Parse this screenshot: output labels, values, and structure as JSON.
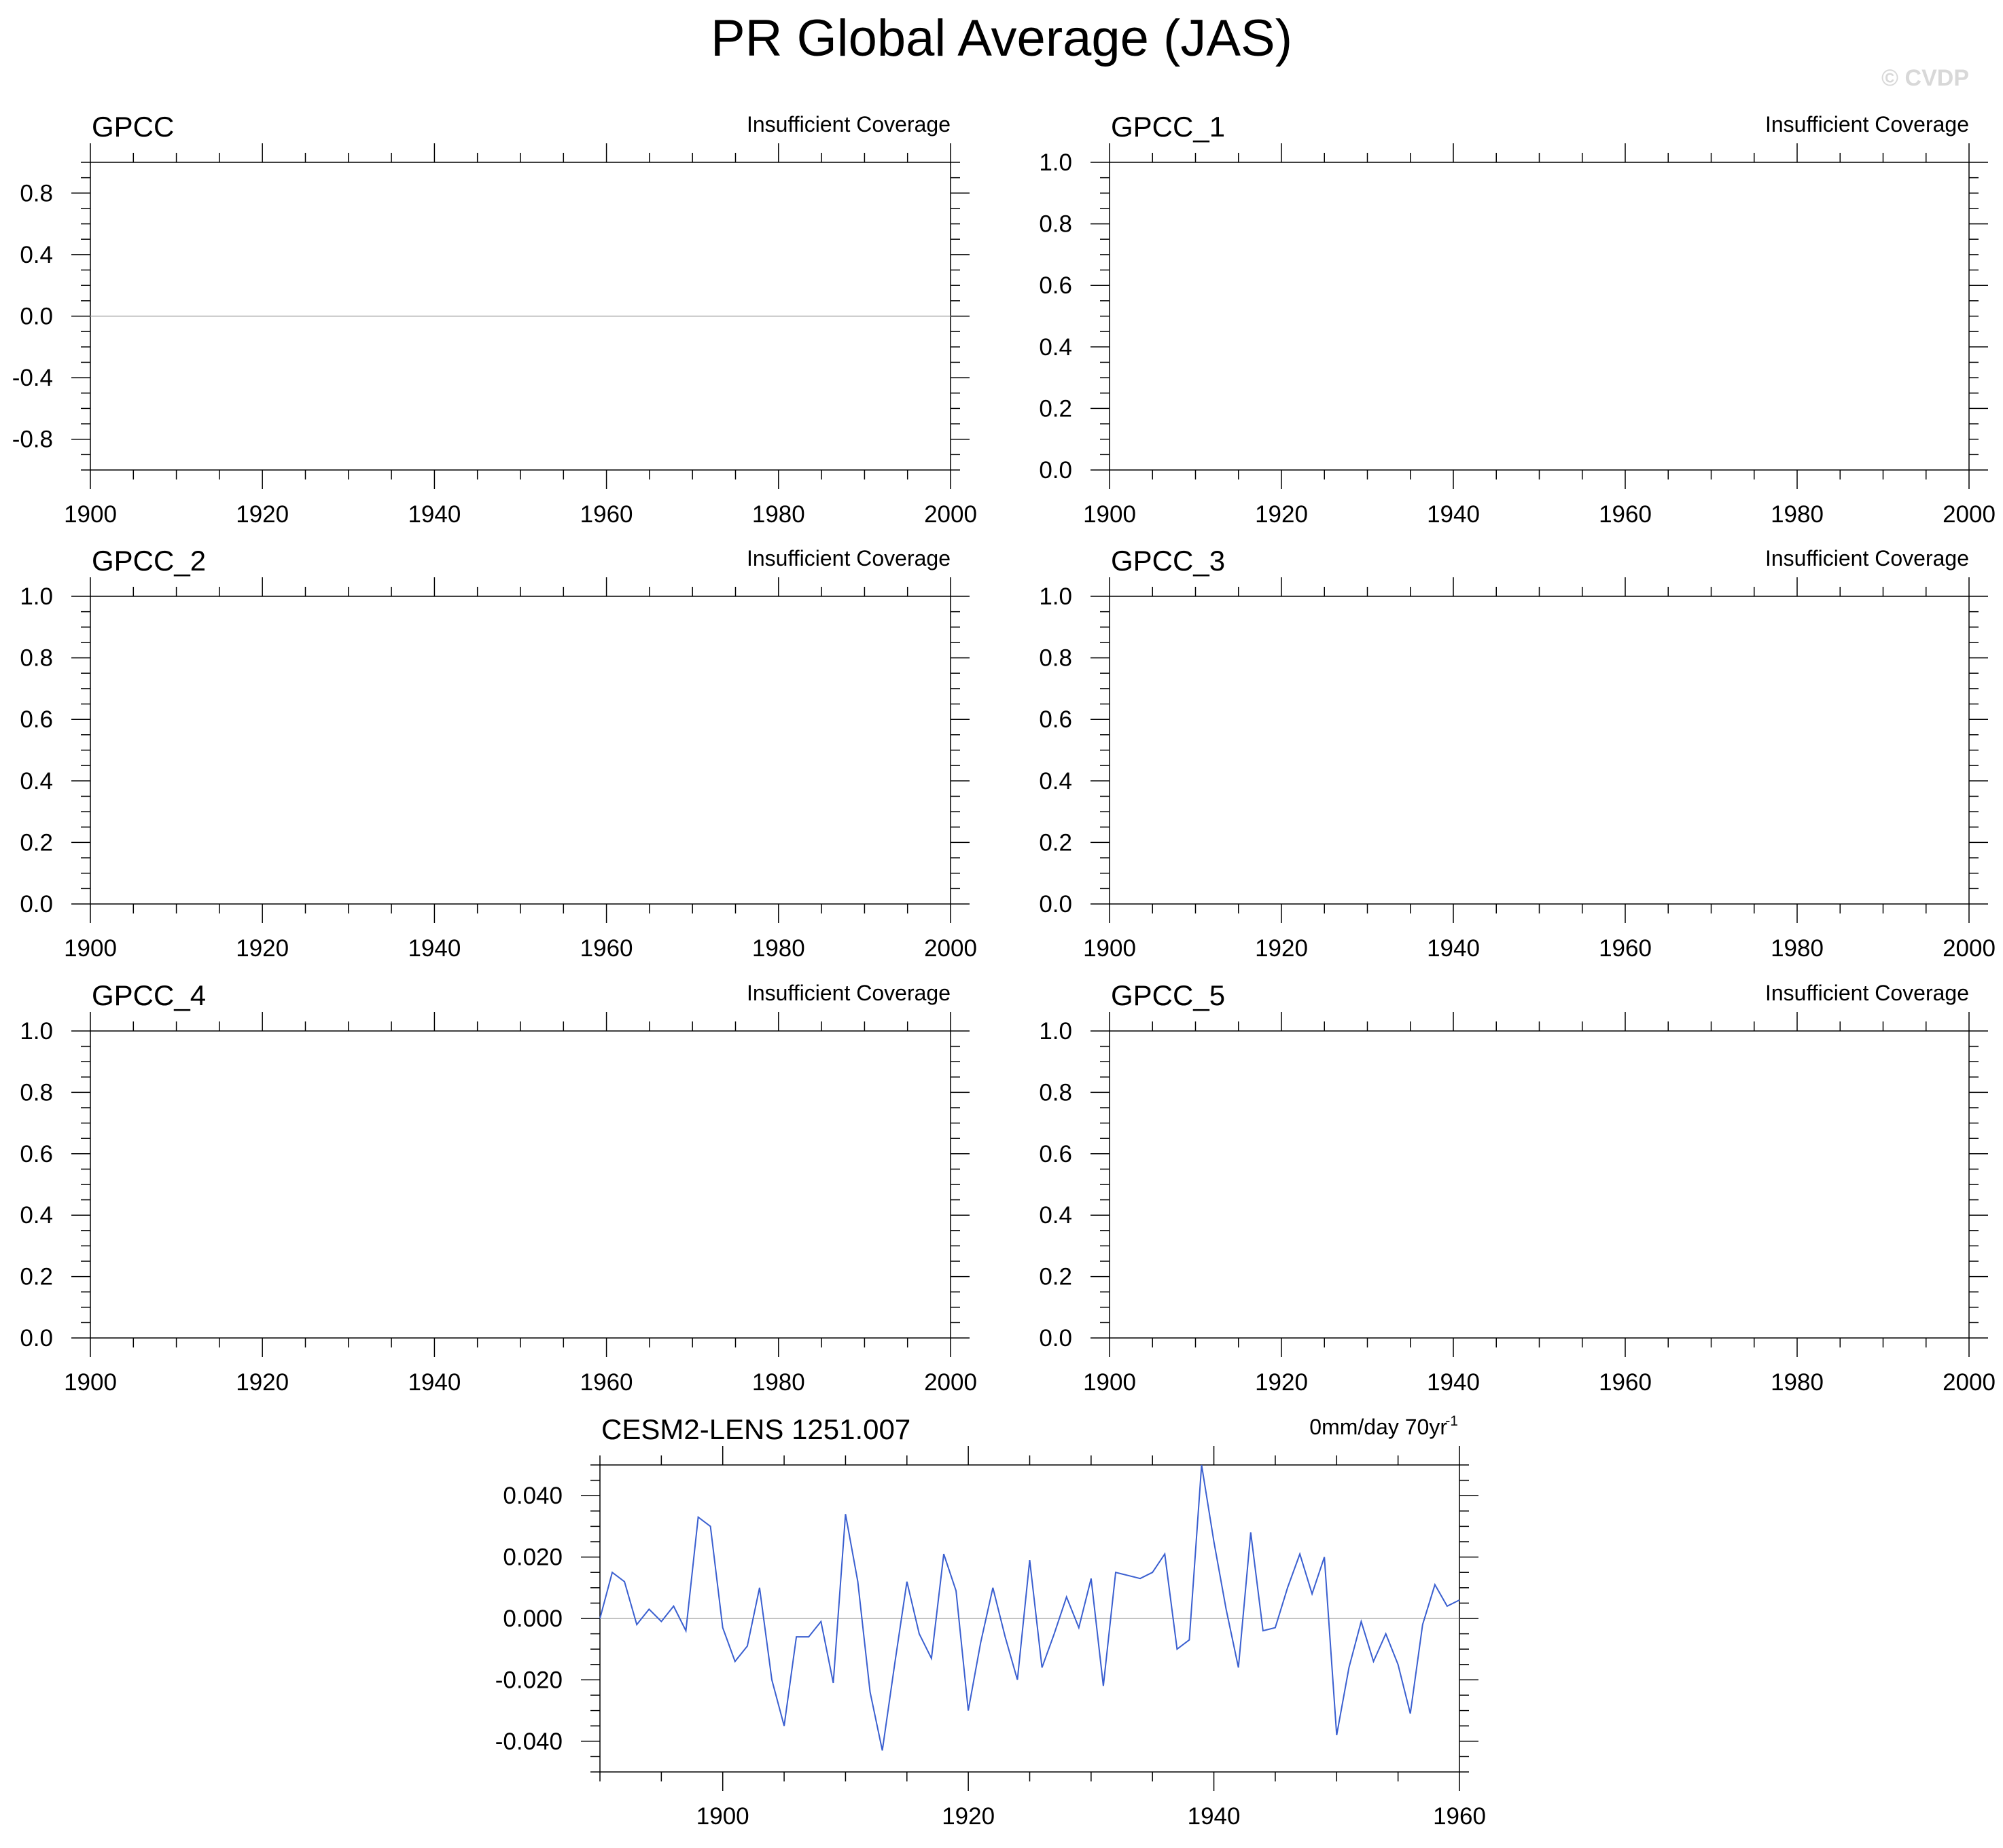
{
  "figure": {
    "title": "PR Global Average (JAS)",
    "watermark": "© CVDP"
  },
  "chart_data": [
    {
      "type": "line",
      "title": "GPCC",
      "note": "Insufficient Coverage",
      "xlim": [
        1900,
        2000
      ],
      "xticks": [
        "1900",
        "1920",
        "1940",
        "1960",
        "1980",
        "2000"
      ],
      "ylim": [
        -1,
        1
      ],
      "yticks": [
        "0.8",
        "0.4",
        "0.0",
        "-0.4",
        "-0.8"
      ],
      "zero_line": true,
      "series": []
    },
    {
      "type": "line",
      "title": "GPCC_1",
      "note": "Insufficient Coverage",
      "xlim": [
        1900,
        2000
      ],
      "xticks": [
        "1900",
        "1920",
        "1940",
        "1960",
        "1980",
        "2000"
      ],
      "ylim": [
        0,
        1
      ],
      "yticks": [
        "1.0",
        "0.8",
        "0.6",
        "0.4",
        "0.2",
        "0.0"
      ],
      "zero_line": false,
      "series": []
    },
    {
      "type": "line",
      "title": "GPCC_2",
      "note": "Insufficient Coverage",
      "xlim": [
        1900,
        2000
      ],
      "xticks": [
        "1900",
        "1920",
        "1940",
        "1960",
        "1980",
        "2000"
      ],
      "ylim": [
        0,
        1
      ],
      "yticks": [
        "1.0",
        "0.8",
        "0.6",
        "0.4",
        "0.2",
        "0.0"
      ],
      "zero_line": false,
      "series": []
    },
    {
      "type": "line",
      "title": "GPCC_3",
      "note": "Insufficient Coverage",
      "xlim": [
        1900,
        2000
      ],
      "xticks": [
        "1900",
        "1920",
        "1940",
        "1960",
        "1980",
        "2000"
      ],
      "ylim": [
        0,
        1
      ],
      "yticks": [
        "1.0",
        "0.8",
        "0.6",
        "0.4",
        "0.2",
        "0.0"
      ],
      "zero_line": false,
      "series": []
    },
    {
      "type": "line",
      "title": "GPCC_4",
      "note": "Insufficient Coverage",
      "xlim": [
        1900,
        2000
      ],
      "xticks": [
        "1900",
        "1920",
        "1940",
        "1960",
        "1980",
        "2000"
      ],
      "ylim": [
        0,
        1
      ],
      "yticks": [
        "1.0",
        "0.8",
        "0.6",
        "0.4",
        "0.2",
        "0.0"
      ],
      "zero_line": false,
      "series": []
    },
    {
      "type": "line",
      "title": "GPCC_5",
      "note": "Insufficient Coverage",
      "xlim": [
        1900,
        2000
      ],
      "xticks": [
        "1900",
        "1920",
        "1940",
        "1960",
        "1980",
        "2000"
      ],
      "ylim": [
        0,
        1
      ],
      "yticks": [
        "1.0",
        "0.8",
        "0.6",
        "0.4",
        "0.2",
        "0.0"
      ],
      "zero_line": false,
      "series": []
    },
    {
      "type": "line",
      "title": "CESM2-LENS 1251.007",
      "note": "0mm/day 70yr",
      "note_superscript": "-1",
      "xlim": [
        1890,
        1960
      ],
      "xticks": [
        "1900",
        "1920",
        "1940",
        "1960"
      ],
      "ylim": [
        -0.05,
        0.05
      ],
      "yticks": [
        "0.040",
        "0.020",
        "0.000",
        "-0.020",
        "-0.040"
      ],
      "zero_line": true,
      "line_color": "#3a5fd0",
      "series": [
        {
          "x": [
            1890,
            1891,
            1892,
            1893,
            1894,
            1895,
            1896,
            1897,
            1898,
            1899,
            1900,
            1901,
            1902,
            1903,
            1904,
            1905,
            1906,
            1907,
            1908,
            1909,
            1910,
            1911,
            1912,
            1913,
            1914,
            1915,
            1916,
            1917,
            1918,
            1919,
            1920,
            1921,
            1922,
            1923,
            1924,
            1925,
            1926,
            1927,
            1928,
            1929,
            1930,
            1931,
            1932,
            1933,
            1934,
            1935,
            1936,
            1937,
            1938,
            1939,
            1940,
            1941,
            1942,
            1943,
            1944,
            1945,
            1946,
            1947,
            1948,
            1949,
            1950,
            1951,
            1952,
            1953,
            1954,
            1955,
            1956,
            1957,
            1958,
            1959,
            1960
          ],
          "values": [
            0.0,
            0.015,
            0.012,
            -0.002,
            0.003,
            -0.001,
            0.004,
            -0.004,
            0.033,
            0.03,
            -0.003,
            -0.014,
            -0.009,
            0.01,
            -0.02,
            -0.035,
            -0.006,
            -0.006,
            -0.001,
            -0.021,
            0.034,
            0.012,
            -0.024,
            -0.043,
            -0.015,
            0.012,
            -0.005,
            -0.013,
            0.021,
            0.009,
            -0.03,
            -0.008,
            0.01,
            -0.006,
            -0.02,
            0.019,
            -0.016,
            -0.005,
            0.007,
            -0.003,
            0.013,
            -0.022,
            0.015,
            0.014,
            0.013,
            0.015,
            0.021,
            -0.01,
            -0.007,
            0.05,
            0.025,
            0.003,
            -0.016,
            0.028,
            -0.004,
            -0.003,
            0.01,
            0.021,
            0.008,
            0.02,
            -0.038,
            -0.016,
            -0.001,
            -0.014,
            -0.005,
            -0.015,
            -0.031,
            -0.002,
            0.011,
            0.004,
            0.006
          ]
        }
      ]
    }
  ]
}
